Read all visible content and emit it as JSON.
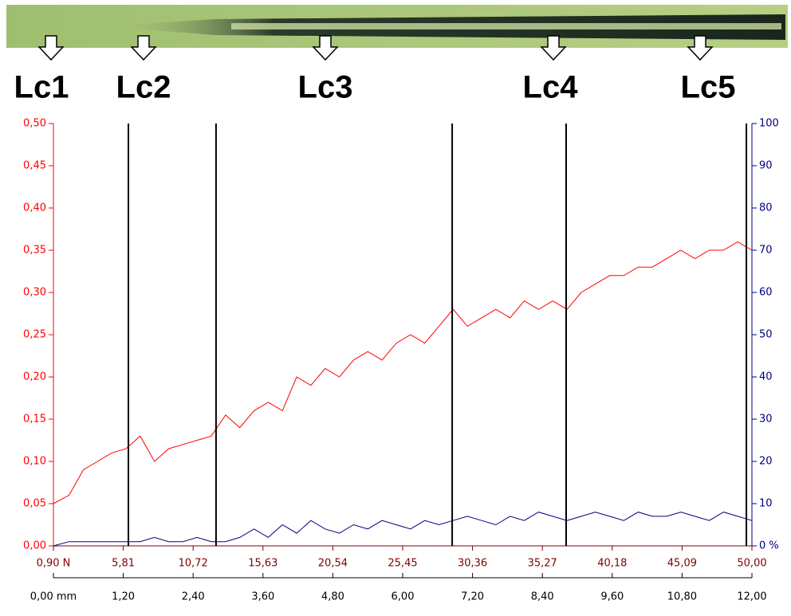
{
  "chart_data": {
    "type": "line",
    "annotations": [
      "Lc1",
      "Lc2",
      "Lc3",
      "Lc4",
      "Lc5"
    ],
    "critical_loads": [
      6.17,
      12.33,
      28.93,
      36.94,
      49.61
    ],
    "x": [
      0.9,
      2,
      3,
      4,
      5,
      6,
      7,
      8,
      9,
      10,
      11,
      12,
      13,
      14,
      15,
      16,
      17,
      18,
      19,
      20,
      21,
      22,
      23,
      24,
      25,
      26,
      27,
      28,
      29,
      30,
      31,
      32,
      33,
      34,
      35,
      36,
      37,
      38,
      39,
      40,
      41,
      42,
      43,
      44,
      45,
      46,
      47,
      48,
      49,
      50
    ],
    "series": [
      {
        "color": "#ff0000",
        "values": [
          0.05,
          0.06,
          0.09,
          0.1,
          0.11,
          0.115,
          0.13,
          0.1,
          0.115,
          0.12,
          0.125,
          0.13,
          0.155,
          0.14,
          0.16,
          0.17,
          0.16,
          0.2,
          0.19,
          0.21,
          0.2,
          0.22,
          0.23,
          0.22,
          0.24,
          0.25,
          0.24,
          0.26,
          0.28,
          0.26,
          0.27,
          0.28,
          0.27,
          0.29,
          0.28,
          0.29,
          0.28,
          0.3,
          0.31,
          0.32,
          0.32,
          0.33,
          0.33,
          0.34,
          0.35,
          0.34,
          0.35,
          0.35,
          0.36,
          0.35
        ]
      },
      {
        "color": "#000080",
        "axis": "y2",
        "values": [
          0,
          1,
          1,
          1,
          1,
          1,
          1,
          2,
          1,
          1,
          2,
          1,
          1,
          2,
          4,
          2,
          5,
          3,
          6,
          4,
          3,
          5,
          4,
          6,
          5,
          4,
          6,
          5,
          6,
          7,
          6,
          5,
          7,
          6,
          8,
          7,
          6,
          7,
          8,
          7,
          6,
          8,
          7,
          7,
          8,
          7,
          6,
          8,
          7,
          6
        ]
      }
    ],
    "xlim": [
      0.9,
      50
    ],
    "xticks": [
      {
        "value": 0.9,
        "label": "0,90 N"
      },
      {
        "value": 5.81,
        "label": "5,81"
      },
      {
        "value": 10.72,
        "label": "10,72"
      },
      {
        "value": 15.63,
        "label": "15,63"
      },
      {
        "value": 20.54,
        "label": "20,54"
      },
      {
        "value": 25.45,
        "label": "25,45"
      },
      {
        "value": 30.36,
        "label": "30,36"
      },
      {
        "value": 35.27,
        "label": "35,27"
      },
      {
        "value": 40.18,
        "label": "40,18"
      },
      {
        "value": 45.09,
        "label": "45,09"
      },
      {
        "value": 50,
        "label": "50,00"
      }
    ],
    "x2lim": [
      0,
      12
    ],
    "x2ticks": [
      {
        "value": 0,
        "label": "0,00 mm"
      },
      {
        "value": 1.2,
        "label": "1,20"
      },
      {
        "value": 2.4,
        "label": "2,40"
      },
      {
        "value": 3.6,
        "label": "3,60"
      },
      {
        "value": 4.8,
        "label": "4,80"
      },
      {
        "value": 6,
        "label": "6,00"
      },
      {
        "value": 7.2,
        "label": "7,20"
      },
      {
        "value": 8.4,
        "label": "8,40"
      },
      {
        "value": 9.6,
        "label": "9,60"
      },
      {
        "value": 10.8,
        "label": "10,80"
      },
      {
        "value": 12,
        "label": "12,00"
      }
    ],
    "ylim": [
      0,
      0.5
    ],
    "yticks": [
      {
        "value": 0,
        "label": "0,00"
      },
      {
        "value": 0.05,
        "label": "0,05"
      },
      {
        "value": 0.1,
        "label": "0,10"
      },
      {
        "value": 0.15,
        "label": "0,15"
      },
      {
        "value": 0.2,
        "label": "0,20"
      },
      {
        "value": 0.25,
        "label": "0,25"
      },
      {
        "value": 0.3,
        "label": "0,30"
      },
      {
        "value": 0.35,
        "label": "0,35"
      },
      {
        "value": 0.4,
        "label": "0,40"
      },
      {
        "value": 0.45,
        "label": "0,45"
      },
      {
        "value": 0.5,
        "label": "0,50"
      }
    ],
    "y2lim": [
      0,
      100
    ],
    "y2ticks": [
      {
        "value": 0,
        "label": "0 %"
      },
      10,
      20,
      30,
      40,
      50,
      60,
      70,
      80,
      90,
      100
    ]
  }
}
